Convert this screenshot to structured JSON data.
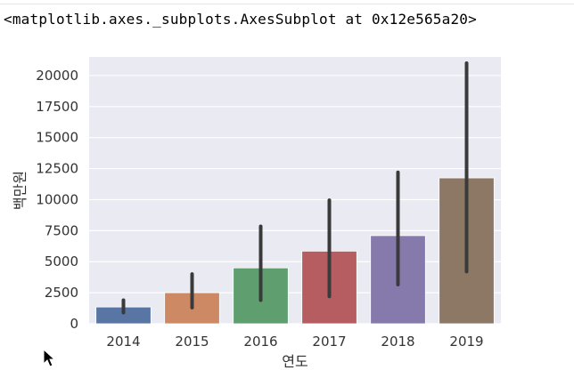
{
  "output": {
    "repr_text": "<matplotlib.axes._subplots.AxesSubplot at 0x12e565a20>"
  },
  "chart_data": {
    "type": "bar",
    "categories": [
      "2014",
      "2015",
      "2016",
      "2017",
      "2018",
      "2019"
    ],
    "values": [
      1350,
      2500,
      4500,
      5850,
      7100,
      11750
    ],
    "error_low": [
      900,
      1300,
      1900,
      2200,
      3150,
      4200
    ],
    "error_high": [
      1900,
      4000,
      7850,
      9950,
      12200,
      21000
    ],
    "colors": [
      "#5875a4",
      "#cc8963",
      "#5f9e6e",
      "#b55d60",
      "#857aab",
      "#8d7866"
    ],
    "xlabel": "연도",
    "ylabel": "백만원",
    "ylim": [
      0,
      21500
    ],
    "yticks": [
      0,
      2500,
      5000,
      7500,
      10000,
      12500,
      15000,
      17500,
      20000
    ],
    "grid": true,
    "background": "#eaeaf2",
    "errorbar_color": "#3a3a3a"
  }
}
